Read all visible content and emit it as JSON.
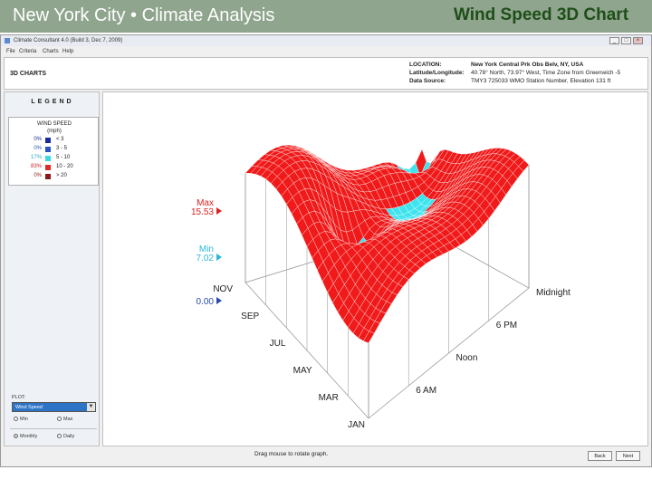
{
  "slide": {
    "title_left": "New York City • Climate Analysis",
    "title_right": "Wind Speed 3D Chart"
  },
  "window": {
    "title": "Climate Consultant 4.0 (Build 3, Dec 7, 2009)",
    "min_label": "_",
    "max_label": "□",
    "close_label": "×",
    "menu": [
      "File",
      "Criteria",
      "Charts",
      "Help"
    ]
  },
  "header": {
    "section": "3D CHARTS",
    "location_label": "LOCATION:",
    "location_value": "New York Central Prk Obs Belv, NY, USA",
    "latlon_label": "Latitude/Longitude:",
    "latlon_value": "40.78° North, 73.97° West, Time Zone from Greenwich -5",
    "source_label": "Data Source:",
    "source_value": "TMY3   725033 WMO Station Number, Elevation 131 ft"
  },
  "legend": {
    "heading": "LEGEND",
    "title": "WIND SPEED",
    "unit": "(mph)",
    "rows": [
      {
        "pct": "0%",
        "range": "< 3",
        "color": "#1a2a9a",
        "pct_color": "#1a2a9a"
      },
      {
        "pct": "0%",
        "range": "3  -  5",
        "color": "#2a52c0",
        "pct_color": "#2a52c0"
      },
      {
        "pct": "17%",
        "range": "5  -  10",
        "color": "#3ad9e6",
        "pct_color": "#22aabb"
      },
      {
        "pct": "83%",
        "range": "10  -  20",
        "color": "#dd2a2a",
        "pct_color": "#cc2222"
      },
      {
        "pct": "0%",
        "range": "> 20",
        "color": "#8a1818",
        "pct_color": "#8a1818"
      }
    ]
  },
  "plot": {
    "label": "PLOT:",
    "selected": "Wind Speed",
    "arrow": "▼",
    "option_a": "Min",
    "option_b": "Max",
    "option_monthly": "Monthly",
    "option_daily": "Daily"
  },
  "chart_data": {
    "type": "surface",
    "colors": {
      "high": "#f01a1a",
      "low": "#3ee3ee",
      "grid": "#ffffff"
    },
    "axis_labels": {
      "months": [
        "JAN",
        "MAR",
        "MAY",
        "JUL",
        "SEP",
        "NOV"
      ],
      "hours": [
        "6 AM",
        "Noon",
        "6 PM",
        "Midnight"
      ]
    },
    "markers": [
      {
        "label": "Max",
        "value": "15.53",
        "color": "#dd2222"
      },
      {
        "label": "Min",
        "value": "7.02",
        "color": "#2ab8d8"
      },
      {
        "label": "",
        "value": "0.00",
        "color": "#2a4aaa"
      }
    ]
  },
  "status": {
    "message": "Drag mouse to rotate graph.",
    "back_button": "Back",
    "next_button": "Next"
  }
}
